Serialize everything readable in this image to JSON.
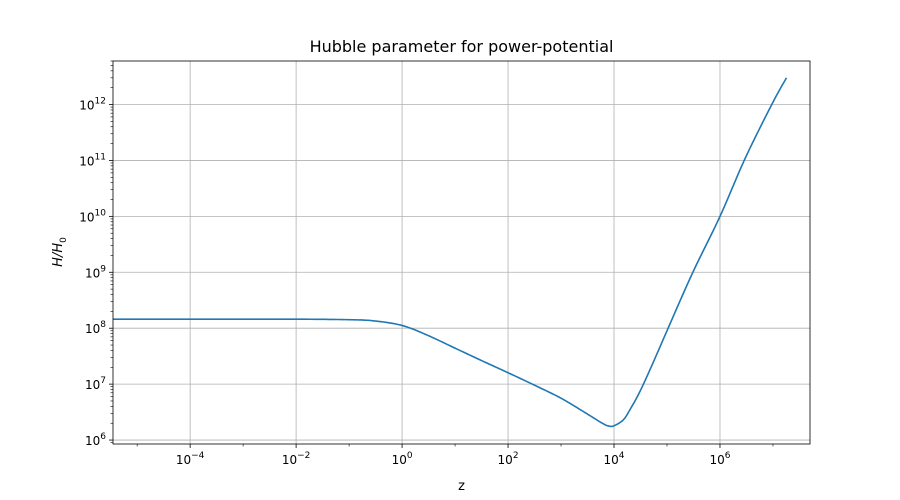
{
  "chart_data": {
    "type": "line",
    "title": "Hubble parameter for power-potential",
    "xlabel": "z",
    "ylabel_main": "H/H",
    "ylabel_sub": "0",
    "xscale": "log",
    "yscale": "log",
    "xlim": [
      3.5e-06,
      50000000.0
    ],
    "ylim": [
      850000.0,
      6000000000000.0
    ],
    "grid": true,
    "x_ticks": [
      {
        "base": "10",
        "exp": "−4",
        "value": 0.0001
      },
      {
        "base": "10",
        "exp": "−2",
        "value": 0.01
      },
      {
        "base": "10",
        "exp": "0",
        "value": 1
      },
      {
        "base": "10",
        "exp": "2",
        "value": 100.0
      },
      {
        "base": "10",
        "exp": "4",
        "value": 10000.0
      },
      {
        "base": "10",
        "exp": "6",
        "value": 1000000.0
      }
    ],
    "y_ticks": [
      {
        "base": "10",
        "exp": "6",
        "value": 1000000.0
      },
      {
        "base": "10",
        "exp": "7",
        "value": 10000000.0
      },
      {
        "base": "10",
        "exp": "8",
        "value": 100000000.0
      },
      {
        "base": "10",
        "exp": "9",
        "value": 1000000000.0
      },
      {
        "base": "10",
        "exp": "10",
        "value": 10000000000.0
      },
      {
        "base": "10",
        "exp": "11",
        "value": 100000000000.0
      },
      {
        "base": "10",
        "exp": "12",
        "value": 1000000000000.0
      }
    ],
    "series": [
      {
        "color": "#1f77b4",
        "x": [
          3.5e-06,
          1e-05,
          0.0001,
          0.001,
          0.01,
          0.1,
          0.3,
          1,
          3,
          10,
          30,
          100,
          300,
          1000,
          3000,
          6000,
          8000,
          10000.0,
          15000.0,
          20000.0,
          30000.0,
          50000.0,
          100000.0,
          300000.0,
          1000000.0,
          3000000.0,
          10000000.0,
          18000000.0
        ],
        "y": [
          145000000.0,
          145000000.0,
          145000000.0,
          145000000.0,
          145000000.0,
          142000000.0,
          135000000.0,
          112000000.0,
          75000000.0,
          44000000.0,
          27000000.0,
          16000000.0,
          9800000.0,
          5600000.0,
          3000000.0,
          2000000.0,
          1780000.0,
          1800000.0,
          2300000.0,
          3500000.0,
          7000000.0,
          20000000.0,
          90000000.0,
          950000000.0,
          10000000000.0,
          110000000000.0,
          1100000000000.0,
          3000000000000.0
        ]
      }
    ]
  }
}
